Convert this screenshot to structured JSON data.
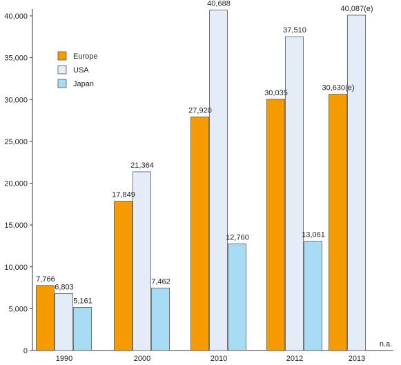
{
  "chart_data": {
    "type": "bar",
    "categories": [
      "1990",
      "2000",
      "2010",
      "2012",
      "2013"
    ],
    "series": [
      {
        "name": "Europe",
        "color": "#f59b00",
        "values": [
          7766,
          17849,
          27920,
          30035,
          30630
        ],
        "labels": [
          "7,766",
          "17,849",
          "27,920",
          "30,035",
          "30,630(e)"
        ]
      },
      {
        "name": "USA",
        "color": "#e4ecf8",
        "values": [
          6803,
          21364,
          40688,
          37510,
          40087
        ],
        "labels": [
          "6,803",
          "21,364",
          "40,688",
          "37,510",
          "40,087(e)"
        ]
      },
      {
        "name": "Japan",
        "color": "#a8dcf4",
        "values": [
          5161,
          7462,
          12760,
          13061,
          null
        ],
        "labels": [
          "5,161",
          "7,462",
          "12,760",
          "13,061",
          "n.a."
        ]
      }
    ],
    "yticks": [
      0,
      5000,
      10000,
      15000,
      20000,
      25000,
      30000,
      35000,
      40000
    ],
    "ytick_labels": [
      "0",
      "5,000",
      "10,000",
      "15,000",
      "20,000",
      "25,000",
      "30,000",
      "35,000",
      "40,000"
    ],
    "ylim": [
      0,
      40000
    ],
    "legend": "top-left",
    "grid": false
  }
}
